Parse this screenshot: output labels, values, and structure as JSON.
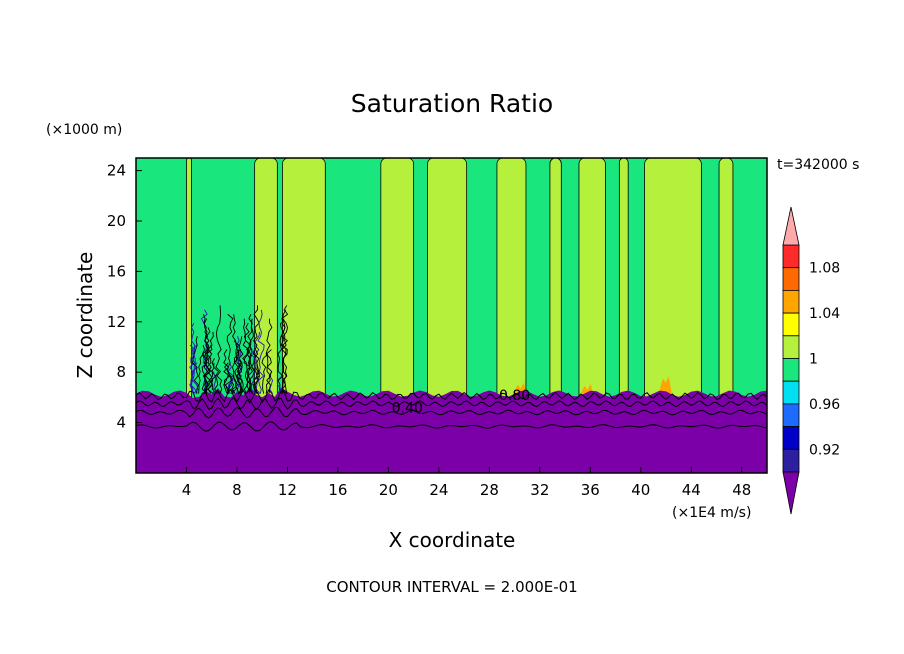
{
  "chart_data": {
    "type": "heatmap",
    "title": "Saturation Ratio",
    "xlabel": "X coordinate",
    "ylabel": "Z coordinate",
    "x_unit_label": "(×1E4 m/s)",
    "y_unit_label": "(×1000 m)",
    "time_label": "t=342000 s",
    "footer": "CONTOUR INTERVAL = 2.000E-01",
    "xlim": [
      0,
      50
    ],
    "ylim": [
      0,
      25
    ],
    "x_ticks": [
      4,
      8,
      12,
      16,
      20,
      24,
      28,
      32,
      36,
      40,
      44,
      48
    ],
    "y_ticks": [
      4,
      8,
      12,
      16,
      20,
      24
    ],
    "contour_labels": [
      {
        "text": "0.40",
        "x": 21.5,
        "y": 5.2
      },
      {
        "text": "0.80",
        "x": 30.0,
        "y": 6.2
      }
    ],
    "colorbar": {
      "tick_labels": [
        "1.08",
        "1.04",
        "1",
        "0.96",
        "0.92"
      ],
      "tick_values": [
        1.08,
        1.04,
        1.0,
        0.96,
        0.92
      ],
      "levels": [
        {
          "from": null,
          "to": 0.9,
          "color": "#7b00a8",
          "end": "min"
        },
        {
          "from": 0.9,
          "to": 0.92,
          "color": "#2c1fa0"
        },
        {
          "from": 0.92,
          "to": 0.94,
          "color": "#0000c8"
        },
        {
          "from": 0.94,
          "to": 0.96,
          "color": "#1e6cff"
        },
        {
          "from": 0.96,
          "to": 0.98,
          "color": "#00e0f0"
        },
        {
          "from": 0.98,
          "to": 1.0,
          "color": "#19e67d"
        },
        {
          "from": 1.0,
          "to": 1.02,
          "color": "#b4f03c"
        },
        {
          "from": 1.02,
          "to": 1.04,
          "color": "#ffff00"
        },
        {
          "from": 1.04,
          "to": 1.06,
          "color": "#ffa500"
        },
        {
          "from": 1.06,
          "to": 1.08,
          "color": "#ff6a00"
        },
        {
          "from": 1.08,
          "to": 1.1,
          "color": "#ff2a2a"
        },
        {
          "from": 1.1,
          "to": null,
          "color": "#ffaaaa",
          "end": "max"
        }
      ]
    },
    "field": {
      "background_value": 0.99,
      "lower_layer_value": 0.5,
      "lower_layer_top": 6.3,
      "high_bands": [
        {
          "x_from": 4.0,
          "x_to": 4.4,
          "value": 1.01
        },
        {
          "x_from": 9.4,
          "x_to": 11.2,
          "value": 1.01
        },
        {
          "x_from": 11.6,
          "x_to": 15.0,
          "value": 1.01
        },
        {
          "x_from": 19.4,
          "x_to": 22.0,
          "value": 1.01
        },
        {
          "x_from": 23.1,
          "x_to": 26.2,
          "value": 1.01
        },
        {
          "x_from": 28.6,
          "x_to": 30.9,
          "value": 1.01
        },
        {
          "x_from": 32.8,
          "x_to": 33.7,
          "value": 1.01
        },
        {
          "x_from": 35.1,
          "x_to": 37.2,
          "value": 1.01
        },
        {
          "x_from": 38.3,
          "x_to": 39.0,
          "value": 1.01
        },
        {
          "x_from": 40.3,
          "x_to": 44.8,
          "value": 1.01
        },
        {
          "x_from": 46.2,
          "x_to": 47.3,
          "value": 1.01
        }
      ],
      "peaks": [
        {
          "x": 30.4,
          "z": 7.0,
          "value": 1.04
        },
        {
          "x": 35.7,
          "z": 6.9,
          "value": 1.04
        },
        {
          "x": 41.9,
          "z": 7.5,
          "value": 1.05
        }
      ],
      "contour_levels": [
        0.2,
        0.4,
        0.6,
        0.8
      ],
      "contour_heights": [
        3.7,
        4.8,
        5.5,
        6.1
      ]
    }
  }
}
